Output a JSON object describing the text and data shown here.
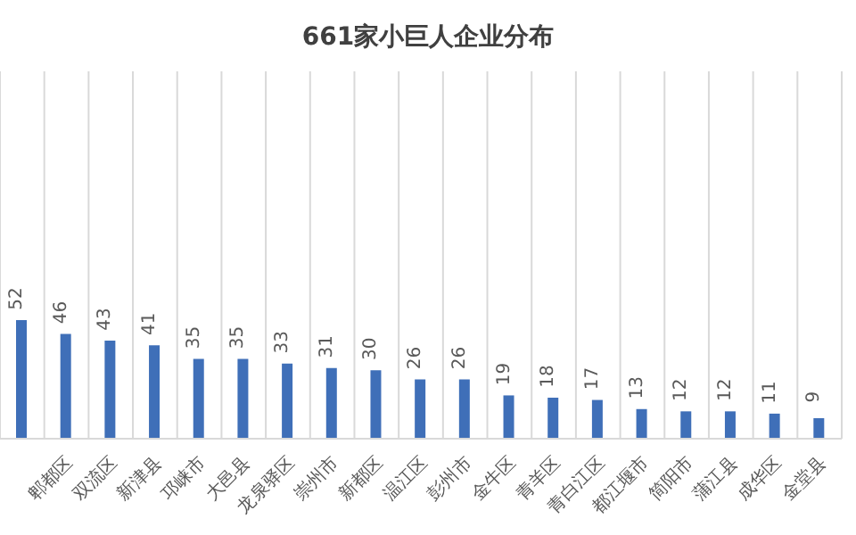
{
  "chart_data": {
    "type": "bar",
    "title": "661家小巨人企业分布",
    "categories": [
      null,
      "郫都区",
      "双流区",
      "新津县",
      "邛崃市",
      "大邑县",
      "龙泉驿区",
      "崇州市",
      "新都区",
      "温江区",
      "彭州市",
      "金牛区",
      "青羊区",
      "青白江区",
      "都江堰市",
      "简阳市",
      "蒲江县",
      "成华区",
      "金堂县"
    ],
    "values": [
      52,
      46,
      43,
      41,
      35,
      35,
      33,
      31,
      30,
      26,
      26,
      19,
      18,
      17,
      13,
      12,
      12,
      11,
      9
    ],
    "color": "#3f6fb8",
    "data_labels": true,
    "grid": "x"
  }
}
